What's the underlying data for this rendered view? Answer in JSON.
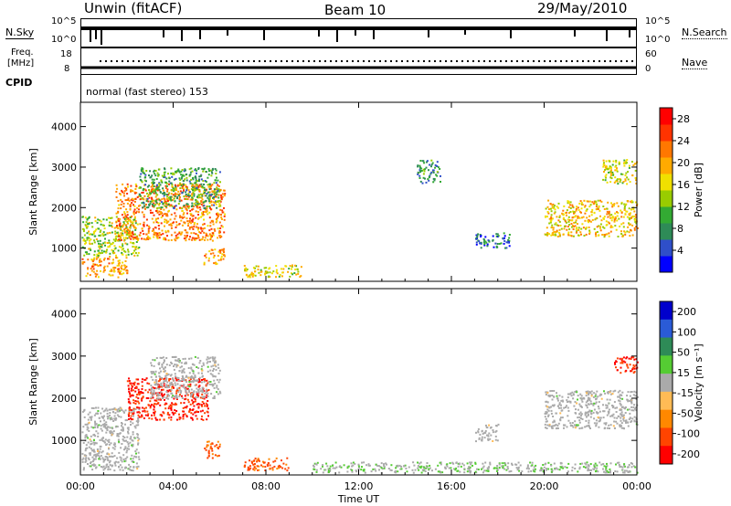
{
  "header": {
    "station": "Unwin (fitACF)",
    "beam": "Beam 10",
    "date": "29/May/2010"
  },
  "nsky_panel": {
    "left_label": "N.Sky",
    "right_label": "N.Search",
    "left_ticks": [
      "10^5",
      "10^0"
    ],
    "right_ticks": [
      "10^5",
      "10^0"
    ]
  },
  "freq_panel": {
    "left_label_line1": "Freq.",
    "left_label_line2": "[MHz]",
    "right_label": "Nave",
    "left_ticks": [
      "18",
      "8"
    ],
    "right_ticks": [
      "60",
      "0"
    ]
  },
  "cpid_panel": {
    "label": "CPID",
    "text": "normal (fast stereo) 153"
  },
  "colors": {
    "power": [
      "#0000ff",
      "#2f4fc9",
      "#2e8b57",
      "#33aa33",
      "#99cc00",
      "#f0e000",
      "#ffaa00",
      "#ff7700",
      "#ff3300",
      "#ff0000"
    ],
    "velocity": [
      "#0000cc",
      "#2a5bd7",
      "#2e8b57",
      "#55cc33",
      "#aaaaaa",
      "#ffbb55",
      "#ff8800",
      "#ff4400",
      "#ff0000"
    ]
  },
  "chart_data": [
    {
      "type": "heatmap",
      "name": "power",
      "ylabel": "Slant Range [km]",
      "ylim": [
        180,
        4600
      ],
      "yticks": [
        1000,
        2000,
        3000,
        4000
      ],
      "xlim": [
        0,
        24
      ],
      "xticks": [
        0,
        4,
        8,
        12,
        16,
        20,
        24
      ],
      "colorbar_label": "Power [dB]",
      "colorbar_ticks": [
        4,
        8,
        12,
        16,
        20,
        24,
        28
      ],
      "colorbar_range": [
        0,
        30
      ],
      "regions": [
        {
          "t": [
            0.05,
            2.0
          ],
          "r": [
            300,
            800
          ],
          "value": 20
        },
        {
          "t": [
            0.05,
            2.5
          ],
          "r": [
            800,
            1800
          ],
          "value": 14
        },
        {
          "t": [
            1.5,
            6.2
          ],
          "r": [
            1200,
            2600
          ],
          "value": 22
        },
        {
          "t": [
            2.5,
            6.0
          ],
          "r": [
            2000,
            3000
          ],
          "value": 10
        },
        {
          "t": [
            5.3,
            6.2
          ],
          "r": [
            600,
            1000
          ],
          "value": 20
        },
        {
          "t": [
            7.0,
            9.5
          ],
          "r": [
            300,
            600
          ],
          "value": 16
        },
        {
          "t": [
            14.5,
            15.5
          ],
          "r": [
            2600,
            3200
          ],
          "value": 8
        },
        {
          "t": [
            17.0,
            18.5
          ],
          "r": [
            1000,
            1400
          ],
          "value": 6
        },
        {
          "t": [
            20.0,
            24.0
          ],
          "r": [
            1300,
            2200
          ],
          "value": 18
        },
        {
          "t": [
            22.5,
            24.0
          ],
          "r": [
            2600,
            3200
          ],
          "value": 16
        }
      ]
    },
    {
      "type": "heatmap",
      "name": "velocity",
      "ylabel": "Slant Range [km]",
      "ylim": [
        180,
        4600
      ],
      "yticks": [
        1000,
        2000,
        3000,
        4000
      ],
      "xlim": [
        0,
        24
      ],
      "xticks": [
        0,
        4,
        8,
        12,
        16,
        20,
        24
      ],
      "xticklabels": [
        "00:00",
        "04:00",
        "08:00",
        "12:00",
        "16:00",
        "20:00",
        "00:00"
      ],
      "xlabel": "Time UT",
      "colorbar_label": "Velocity [m s⁻¹]",
      "colorbar_ticks": [
        200,
        100,
        50,
        15,
        -15,
        -50,
        -100,
        -200
      ],
      "colorbar_range": [
        -250,
        250
      ],
      "regions": [
        {
          "t": [
            0.05,
            2.5
          ],
          "r": [
            300,
            1800
          ],
          "value": 0
        },
        {
          "t": [
            2.0,
            5.5
          ],
          "r": [
            1500,
            2500
          ],
          "value": -200
        },
        {
          "t": [
            3.0,
            6.0
          ],
          "r": [
            2000,
            3000
          ],
          "value": 0
        },
        {
          "t": [
            5.3,
            6.0
          ],
          "r": [
            600,
            1000
          ],
          "value": -150
        },
        {
          "t": [
            7.0,
            9.0
          ],
          "r": [
            300,
            600
          ],
          "value": -150
        },
        {
          "t": [
            10.0,
            24.0
          ],
          "r": [
            250,
            500
          ],
          "value": 20
        },
        {
          "t": [
            17.0,
            18.0
          ],
          "r": [
            1000,
            1400
          ],
          "value": 0
        },
        {
          "t": [
            20.0,
            24.0
          ],
          "r": [
            1300,
            2200
          ],
          "value": 0
        },
        {
          "t": [
            23.0,
            24.0
          ],
          "r": [
            2600,
            3000
          ],
          "value": -200
        }
      ]
    }
  ]
}
